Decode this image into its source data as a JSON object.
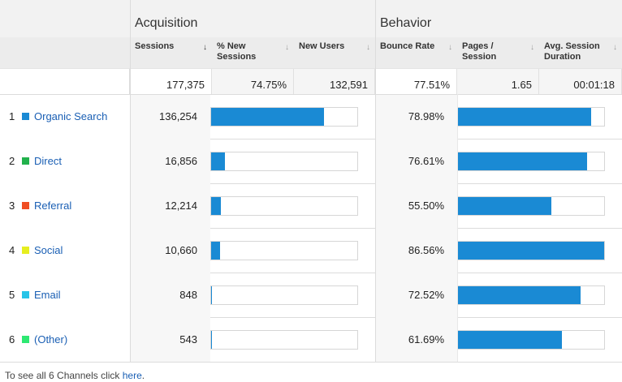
{
  "groups": {
    "acquisition": "Acquisition",
    "behavior": "Behavior"
  },
  "columns": {
    "sessions": "Sessions",
    "pct_new_sessions": "% New Sessions",
    "new_users": "New Users",
    "bounce_rate": "Bounce Rate",
    "pages_per_session": "Pages / Session",
    "avg_session_duration": "Avg. Session Duration"
  },
  "totals": {
    "sessions": "177,375",
    "pct_new_sessions": "74.75%",
    "new_users": "132,591",
    "bounce_rate": "77.51%",
    "pages_per_session": "1.65",
    "avg_session_duration": "00:01:18"
  },
  "rows": [
    {
      "index": "1",
      "channel": "Organic Search",
      "color": "#1a8ad4",
      "sessions": "136,254",
      "sessions_fraction": 0.77,
      "bounce_rate": "78.98%",
      "bounce_fraction": 0.9124
    },
    {
      "index": "2",
      "channel": "Direct",
      "color": "#22b14c",
      "sessions": "16,856",
      "sessions_fraction": 0.095,
      "bounce_rate": "76.61%",
      "bounce_fraction": 0.8851
    },
    {
      "index": "3",
      "channel": "Referral",
      "color": "#f04e23",
      "sessions": "12,214",
      "sessions_fraction": 0.069,
      "bounce_rate": "55.50%",
      "bounce_fraction": 0.6412
    },
    {
      "index": "4",
      "channel": "Social",
      "color": "#e6ee1f",
      "sessions": "10,660",
      "sessions_fraction": 0.06,
      "bounce_rate": "86.56%",
      "bounce_fraction": 1.0
    },
    {
      "index": "5",
      "channel": "Email",
      "color": "#27c4e8",
      "sessions": "848",
      "sessions_fraction": 0.005,
      "bounce_rate": "72.52%",
      "bounce_fraction": 0.8378
    },
    {
      "index": "6",
      "channel": "(Other)",
      "color": "#2ee872",
      "sessions": "543",
      "sessions_fraction": 0.004,
      "bounce_rate": "61.69%",
      "bounce_fraction": 0.7127
    }
  ],
  "footer": {
    "prefix": "To see all 6 Channels click ",
    "link": "here",
    "suffix": "."
  }
}
